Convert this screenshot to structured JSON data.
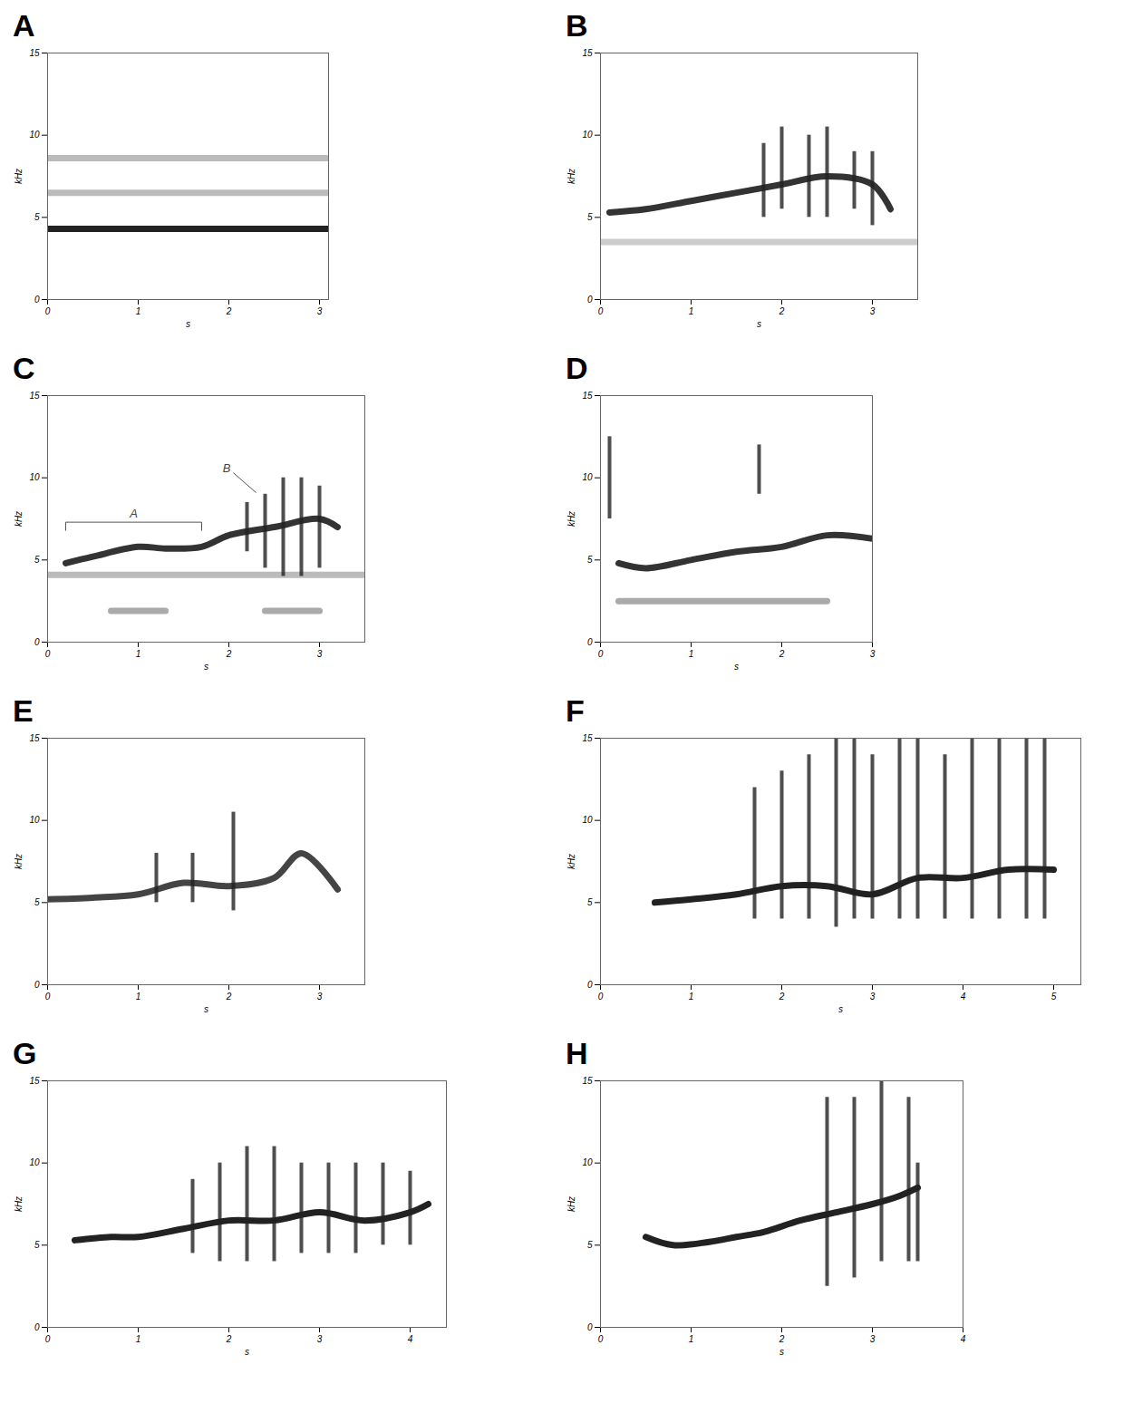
{
  "chart_data": [
    {
      "type": "spectrogram",
      "panel": "A",
      "xlabel": "s",
      "ylabel": "kHz",
      "xlim": [
        0,
        3.1
      ],
      "ylim": [
        0,
        15
      ],
      "xticks": [
        0,
        1,
        2,
        3
      ],
      "yticks": [
        0,
        5,
        10,
        15
      ],
      "traces": [
        {
          "x": [
            0,
            3.1
          ],
          "y": [
            4.3,
            4.3
          ],
          "color": "#222222"
        },
        {
          "x": [
            0,
            3.1
          ],
          "y": [
            6.5,
            6.5
          ],
          "color": "#bbbbbb"
        },
        {
          "x": [
            0,
            3.1
          ],
          "y": [
            8.6,
            8.6
          ],
          "color": "#bbbbbb"
        }
      ],
      "notes": [],
      "annotations": []
    },
    {
      "type": "spectrogram",
      "panel": "B",
      "xlabel": "s",
      "ylabel": "kHz",
      "xlim": [
        0,
        3.5
      ],
      "ylim": [
        0,
        15
      ],
      "xticks": [
        0,
        1,
        2,
        3
      ],
      "yticks": [
        0,
        5,
        10,
        15
      ],
      "traces": [
        {
          "x": [
            0.1,
            0.5,
            1,
            1.5,
            2,
            2.5,
            3,
            3.2
          ],
          "y": [
            5.3,
            5.5,
            6,
            6.5,
            7,
            7.5,
            7,
            5.5
          ],
          "color": "#333333"
        },
        {
          "x": [
            0,
            3.5
          ],
          "y": [
            3.5,
            3.5
          ],
          "color": "#cccccc"
        }
      ],
      "notes": [
        {
          "x": 1.8,
          "low": 5,
          "high": 9.5
        },
        {
          "x": 2.0,
          "low": 5.5,
          "high": 10.5
        },
        {
          "x": 2.3,
          "low": 5,
          "high": 10
        },
        {
          "x": 2.5,
          "low": 5,
          "high": 10.5
        },
        {
          "x": 2.8,
          "low": 5.5,
          "high": 9
        },
        {
          "x": 3.0,
          "low": 4.5,
          "high": 9
        }
      ],
      "annotations": []
    },
    {
      "type": "spectrogram",
      "panel": "C",
      "xlabel": "s",
      "ylabel": "kHz",
      "xlim": [
        0,
        3.5
      ],
      "ylim": [
        0,
        15
      ],
      "xticks": [
        0,
        1,
        2,
        3
      ],
      "yticks": [
        0,
        5,
        10,
        15
      ],
      "traces": [
        {
          "x": [
            0.2,
            0.5,
            1,
            1.3,
            1.7,
            2,
            2.5,
            3,
            3.2
          ],
          "y": [
            4.8,
            5.2,
            5.8,
            5.7,
            5.8,
            6.5,
            7,
            7.5,
            7
          ],
          "color": "#333333"
        },
        {
          "x": [
            0,
            3.5
          ],
          "y": [
            4.1,
            4.1
          ],
          "color": "#bbbbbb"
        },
        {
          "x": [
            0.7,
            1.3
          ],
          "y": [
            1.9,
            1.9
          ],
          "color": "#aaaaaa"
        },
        {
          "x": [
            2.4,
            3.0
          ],
          "y": [
            1.9,
            1.9
          ],
          "color": "#aaaaaa"
        }
      ],
      "notes": [
        {
          "x": 2.2,
          "low": 5.5,
          "high": 8.5
        },
        {
          "x": 2.4,
          "low": 4.5,
          "high": 9
        },
        {
          "x": 2.6,
          "low": 4,
          "high": 10
        },
        {
          "x": 2.8,
          "low": 4,
          "high": 10
        },
        {
          "x": 3.0,
          "low": 4.5,
          "high": 9.5
        }
      ],
      "annotations": [
        {
          "text": "A",
          "type": "bracket",
          "x": [
            0.2,
            1.7
          ],
          "y": 7.3
        },
        {
          "text": "B",
          "type": "leader",
          "x": 2.05,
          "y": 10.3,
          "to": [
            2.3,
            9.1
          ]
        }
      ]
    },
    {
      "type": "spectrogram",
      "panel": "D",
      "xlabel": "s",
      "ylabel": "kHz",
      "xlim": [
        0,
        3
      ],
      "ylim": [
        0,
        15
      ],
      "xticks": [
        0,
        1,
        2,
        3
      ],
      "yticks": [
        0,
        5,
        10,
        15
      ],
      "traces": [
        {
          "x": [
            0.2,
            0.5,
            1,
            1.5,
            2,
            2.5,
            3
          ],
          "y": [
            4.8,
            4.5,
            5,
            5.5,
            5.8,
            6.5,
            6.3
          ],
          "color": "#333333"
        },
        {
          "x": [
            0.2,
            2.5
          ],
          "y": [
            2.5,
            2.5
          ],
          "color": "#aaaaaa"
        }
      ],
      "notes": [
        {
          "x": 0.1,
          "low": 7.5,
          "high": 12.5
        },
        {
          "x": 1.75,
          "low": 9,
          "high": 12
        }
      ],
      "annotations": []
    },
    {
      "type": "spectrogram",
      "panel": "E",
      "xlabel": "s",
      "ylabel": "kHz",
      "xlim": [
        0,
        3.5
      ],
      "ylim": [
        0,
        15
      ],
      "xticks": [
        0,
        1,
        2,
        3
      ],
      "yticks": [
        0,
        5,
        10,
        15
      ],
      "traces": [
        {
          "x": [
            0,
            0.5,
            1,
            1.5,
            2,
            2.5,
            2.8,
            3.2
          ],
          "y": [
            5.2,
            5.3,
            5.5,
            6.2,
            6,
            6.5,
            8,
            5.8
          ],
          "color": "#444444"
        }
      ],
      "notes": [
        {
          "x": 1.2,
          "low": 5,
          "high": 8
        },
        {
          "x": 1.6,
          "low": 5,
          "high": 8
        },
        {
          "x": 2.05,
          "low": 4.5,
          "high": 10.5
        }
      ],
      "annotations": []
    },
    {
      "type": "spectrogram",
      "panel": "F",
      "xlabel": "s",
      "ylabel": "kHz",
      "xlim": [
        0,
        5.3
      ],
      "ylim": [
        0,
        15
      ],
      "xticks": [
        0,
        1,
        2,
        3,
        4,
        5
      ],
      "yticks": [
        0,
        5,
        10,
        15
      ],
      "traces": [
        {
          "x": [
            0.6,
            1,
            1.5,
            2,
            2.5,
            3,
            3.5,
            4,
            4.5,
            5
          ],
          "y": [
            5,
            5.2,
            5.5,
            6,
            6,
            5.5,
            6.5,
            6.5,
            7,
            7
          ],
          "color": "#222222"
        }
      ],
      "notes": [
        {
          "x": 1.7,
          "low": 4,
          "high": 12
        },
        {
          "x": 2.0,
          "low": 4,
          "high": 13
        },
        {
          "x": 2.3,
          "low": 4,
          "high": 14
        },
        {
          "x": 2.6,
          "low": 3.5,
          "high": 15
        },
        {
          "x": 2.8,
          "low": 4,
          "high": 15
        },
        {
          "x": 3.0,
          "low": 4,
          "high": 14
        },
        {
          "x": 3.3,
          "low": 4,
          "high": 15
        },
        {
          "x": 3.5,
          "low": 4,
          "high": 15
        },
        {
          "x": 3.8,
          "low": 4,
          "high": 14
        },
        {
          "x": 4.1,
          "low": 4,
          "high": 15
        },
        {
          "x": 4.4,
          "low": 4,
          "high": 15
        },
        {
          "x": 4.7,
          "low": 4,
          "high": 15
        },
        {
          "x": 4.9,
          "low": 4,
          "high": 15
        }
      ],
      "annotations": []
    },
    {
      "type": "spectrogram",
      "panel": "G",
      "xlabel": "s",
      "ylabel": "kHz",
      "xlim": [
        0,
        4.4
      ],
      "ylim": [
        0,
        15
      ],
      "xticks": [
        0,
        1,
        2,
        3,
        4
      ],
      "yticks": [
        0,
        5,
        10,
        15
      ],
      "traces": [
        {
          "x": [
            0.3,
            0.7,
            1,
            1.5,
            2,
            2.5,
            3,
            3.5,
            4,
            4.2
          ],
          "y": [
            5.3,
            5.5,
            5.5,
            6,
            6.5,
            6.5,
            7,
            6.5,
            7,
            7.5
          ],
          "color": "#222222"
        }
      ],
      "notes": [
        {
          "x": 1.6,
          "low": 4.5,
          "high": 9
        },
        {
          "x": 1.9,
          "low": 4,
          "high": 10
        },
        {
          "x": 2.2,
          "low": 4,
          "high": 11
        },
        {
          "x": 2.5,
          "low": 4,
          "high": 11
        },
        {
          "x": 2.8,
          "low": 4.5,
          "high": 10
        },
        {
          "x": 3.1,
          "low": 4.5,
          "high": 10
        },
        {
          "x": 3.4,
          "low": 4.5,
          "high": 10
        },
        {
          "x": 3.7,
          "low": 5,
          "high": 10
        },
        {
          "x": 4.0,
          "low": 5,
          "high": 9.5
        }
      ],
      "annotations": []
    },
    {
      "type": "spectrogram",
      "panel": "H",
      "xlabel": "s",
      "ylabel": "kHz",
      "xlim": [
        0,
        4
      ],
      "ylim": [
        0,
        15
      ],
      "xticks": [
        0,
        1,
        2,
        3,
        4
      ],
      "yticks": [
        0,
        5,
        10,
        15
      ],
      "traces": [
        {
          "x": [
            0.5,
            0.8,
            1.2,
            1.5,
            1.8,
            2.2,
            2.6,
            3,
            3.3,
            3.5
          ],
          "y": [
            5.5,
            5,
            5.2,
            5.5,
            5.8,
            6.5,
            7,
            7.5,
            8,
            8.5
          ],
          "color": "#222222"
        }
      ],
      "notes": [
        {
          "x": 2.5,
          "low": 2.5,
          "high": 14
        },
        {
          "x": 2.8,
          "low": 3,
          "high": 14
        },
        {
          "x": 3.1,
          "low": 4,
          "high": 15
        },
        {
          "x": 3.4,
          "low": 4,
          "high": 14
        },
        {
          "x": 3.5,
          "low": 4,
          "high": 10
        }
      ],
      "annotations": []
    }
  ]
}
